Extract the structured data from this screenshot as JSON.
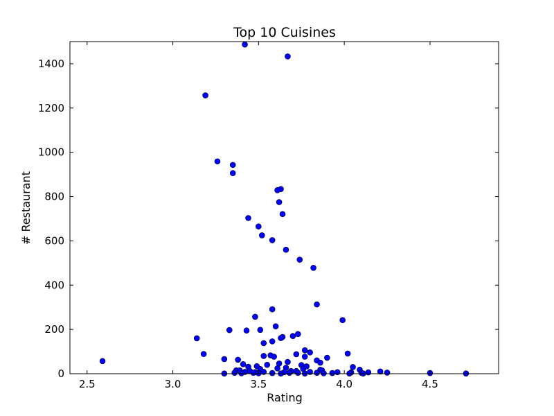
{
  "chart_data": {
    "type": "scatter",
    "title": "Top 10 Cuisines",
    "xlabel": "Rating",
    "ylabel": "# Restaurant",
    "xlim": [
      2.4,
      4.9
    ],
    "ylim": [
      0,
      1500
    ],
    "xticks": [
      2.5,
      3.0,
      3.5,
      4.0,
      4.5
    ],
    "xtick_labels": [
      "2.5",
      "3.0",
      "3.5",
      "4.0",
      "4.5"
    ],
    "yticks": [
      0,
      200,
      400,
      600,
      800,
      1000,
      1200,
      1400
    ],
    "ytick_labels": [
      "0",
      "200",
      "400",
      "600",
      "800",
      "1000",
      "1200",
      "1400"
    ],
    "grid": false,
    "legend": false,
    "marker_color": "#0000ff",
    "marker_edge_color": "#000000",
    "points": [
      [
        3.42,
        1487
      ],
      [
        3.67,
        1433
      ],
      [
        3.19,
        1257
      ],
      [
        3.26,
        959
      ],
      [
        3.35,
        943
      ],
      [
        3.35,
        906
      ],
      [
        3.63,
        834
      ],
      [
        3.61,
        829
      ],
      [
        3.62,
        775
      ],
      [
        3.64,
        721
      ],
      [
        3.44,
        703
      ],
      [
        3.5,
        665
      ],
      [
        3.52,
        625
      ],
      [
        3.58,
        603
      ],
      [
        3.66,
        560
      ],
      [
        3.74,
        515
      ],
      [
        3.82,
        478
      ],
      [
        3.84,
        313
      ],
      [
        3.58,
        291
      ],
      [
        3.99,
        242
      ],
      [
        3.48,
        257
      ],
      [
        3.6,
        214
      ],
      [
        3.33,
        197
      ],
      [
        3.43,
        195
      ],
      [
        3.51,
        198
      ],
      [
        3.73,
        179
      ],
      [
        3.7,
        170
      ],
      [
        3.64,
        166
      ],
      [
        3.63,
        161
      ],
      [
        3.14,
        160
      ],
      [
        3.58,
        146
      ],
      [
        3.53,
        138
      ],
      [
        3.77,
        106
      ],
      [
        3.8,
        96
      ],
      [
        3.18,
        89
      ],
      [
        4.02,
        91
      ],
      [
        3.72,
        88
      ],
      [
        3.53,
        80
      ],
      [
        3.57,
        83
      ],
      [
        3.59,
        77
      ],
      [
        3.77,
        77
      ],
      [
        3.9,
        72
      ],
      [
        3.3,
        66
      ],
      [
        3.38,
        63
      ],
      [
        3.84,
        60
      ],
      [
        3.86,
        50
      ],
      [
        3.67,
        53
      ],
      [
        3.62,
        46
      ],
      [
        3.41,
        43
      ],
      [
        3.55,
        40
      ],
      [
        3.75,
        39
      ],
      [
        3.49,
        34
      ],
      [
        3.78,
        33
      ],
      [
        4.05,
        30
      ],
      [
        3.44,
        31
      ],
      [
        3.66,
        27
      ],
      [
        3.61,
        24
      ],
      [
        3.76,
        22
      ],
      [
        3.51,
        21
      ],
      [
        3.86,
        18
      ],
      [
        3.37,
        15
      ],
      [
        3.39,
        15
      ],
      [
        3.87,
        15
      ],
      [
        3.45,
        12
      ],
      [
        3.69,
        12
      ],
      [
        3.72,
        12
      ],
      [
        4.09,
        18
      ],
      [
        4.21,
        10
      ],
      [
        3.42,
        8
      ],
      [
        3.48,
        7
      ],
      [
        3.53,
        8
      ],
      [
        3.65,
        7
      ],
      [
        3.8,
        8
      ],
      [
        3.96,
        7
      ],
      [
        4.04,
        6
      ],
      [
        4.14,
        6
      ],
      [
        4.25,
        5
      ],
      [
        3.36,
        4
      ],
      [
        3.47,
        4
      ],
      [
        3.58,
        3
      ],
      [
        3.68,
        4
      ],
      [
        3.73,
        4
      ],
      [
        3.84,
        4
      ],
      [
        3.93,
        3
      ],
      [
        4.1,
        4
      ],
      [
        4.5,
        3
      ],
      [
        3.3,
        1
      ],
      [
        3.4,
        2
      ],
      [
        3.5,
        2
      ],
      [
        3.63,
        1
      ],
      [
        3.77,
        1
      ],
      [
        3.88,
        2
      ],
      [
        4.03,
        1
      ],
      [
        4.11,
        1
      ],
      [
        4.71,
        1
      ],
      [
        2.59,
        57
      ]
    ]
  }
}
